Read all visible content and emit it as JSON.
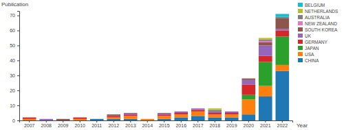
{
  "chart_data": {
    "type": "bar",
    "stacked": true,
    "grid": false,
    "legend": "top-right",
    "y_label": "Publication",
    "x_label": "Year",
    "categories": [
      "2007",
      "2008",
      "2009",
      "2010",
      "2011",
      "2012",
      "2013",
      "2014",
      "2015",
      "2016",
      "2017",
      "2018",
      "2019",
      "2020",
      "2021",
      "2022"
    ],
    "ylim": [
      0,
      73
    ],
    "yticks": [
      0,
      10,
      20,
      30,
      40,
      50,
      60,
      70
    ],
    "series": [
      {
        "name": "CHINA",
        "color": "#1f77b4",
        "values": [
          0,
          0,
          0,
          0,
          1,
          1,
          1,
          0,
          1,
          2,
          3,
          2,
          2,
          4,
          16,
          33
        ]
      },
      {
        "name": "USA",
        "color": "#ff7f0e",
        "values": [
          1,
          0,
          0,
          1,
          0,
          1,
          2,
          1,
          2,
          2,
          3,
          2,
          2,
          10,
          7,
          4
        ]
      },
      {
        "name": "JAPAN",
        "color": "#2ca02c",
        "values": [
          0,
          0,
          0,
          0,
          0,
          0,
          0,
          0,
          0,
          0,
          0,
          0,
          0,
          3,
          16,
          19
        ]
      },
      {
        "name": "GERMANY",
        "color": "#d62728",
        "values": [
          1,
          0,
          0,
          1,
          0,
          1,
          1,
          0,
          1,
          1,
          1,
          1,
          1,
          7,
          4,
          4
        ]
      },
      {
        "name": "UK",
        "color": "#9467bd",
        "values": [
          0,
          1,
          0,
          0,
          0,
          0,
          1,
          0,
          1,
          1,
          1,
          1,
          1,
          3,
          7,
          1
        ]
      },
      {
        "name": "SOUTH KOREA",
        "color": "#8c564b",
        "values": [
          0,
          0,
          1,
          0,
          0,
          1,
          0,
          0,
          0,
          0,
          0,
          0,
          0,
          1,
          2,
          7
        ]
      },
      {
        "name": "NEW ZEALAND",
        "color": "#e377c2",
        "values": [
          0,
          0,
          0,
          0,
          0,
          0,
          0,
          0,
          0,
          0,
          0,
          0,
          0,
          0,
          1,
          0
        ]
      },
      {
        "name": "AUSTRALIA",
        "color": "#7f7f7f",
        "values": [
          0,
          0,
          0,
          0,
          0,
          0,
          0,
          0,
          0,
          0,
          0,
          1,
          0,
          0,
          1,
          1
        ]
      },
      {
        "name": "NETHERLANDS",
        "color": "#bcbd22",
        "values": [
          0,
          0,
          0,
          0,
          0,
          0,
          0,
          0,
          0,
          0,
          0,
          1,
          0,
          0,
          1,
          0
        ]
      },
      {
        "name": "BELGIUM",
        "color": "#17becf",
        "values": [
          0,
          0,
          0,
          0,
          0,
          0,
          0,
          0,
          0,
          0,
          0,
          0,
          0,
          0,
          0,
          2
        ]
      }
    ]
  }
}
